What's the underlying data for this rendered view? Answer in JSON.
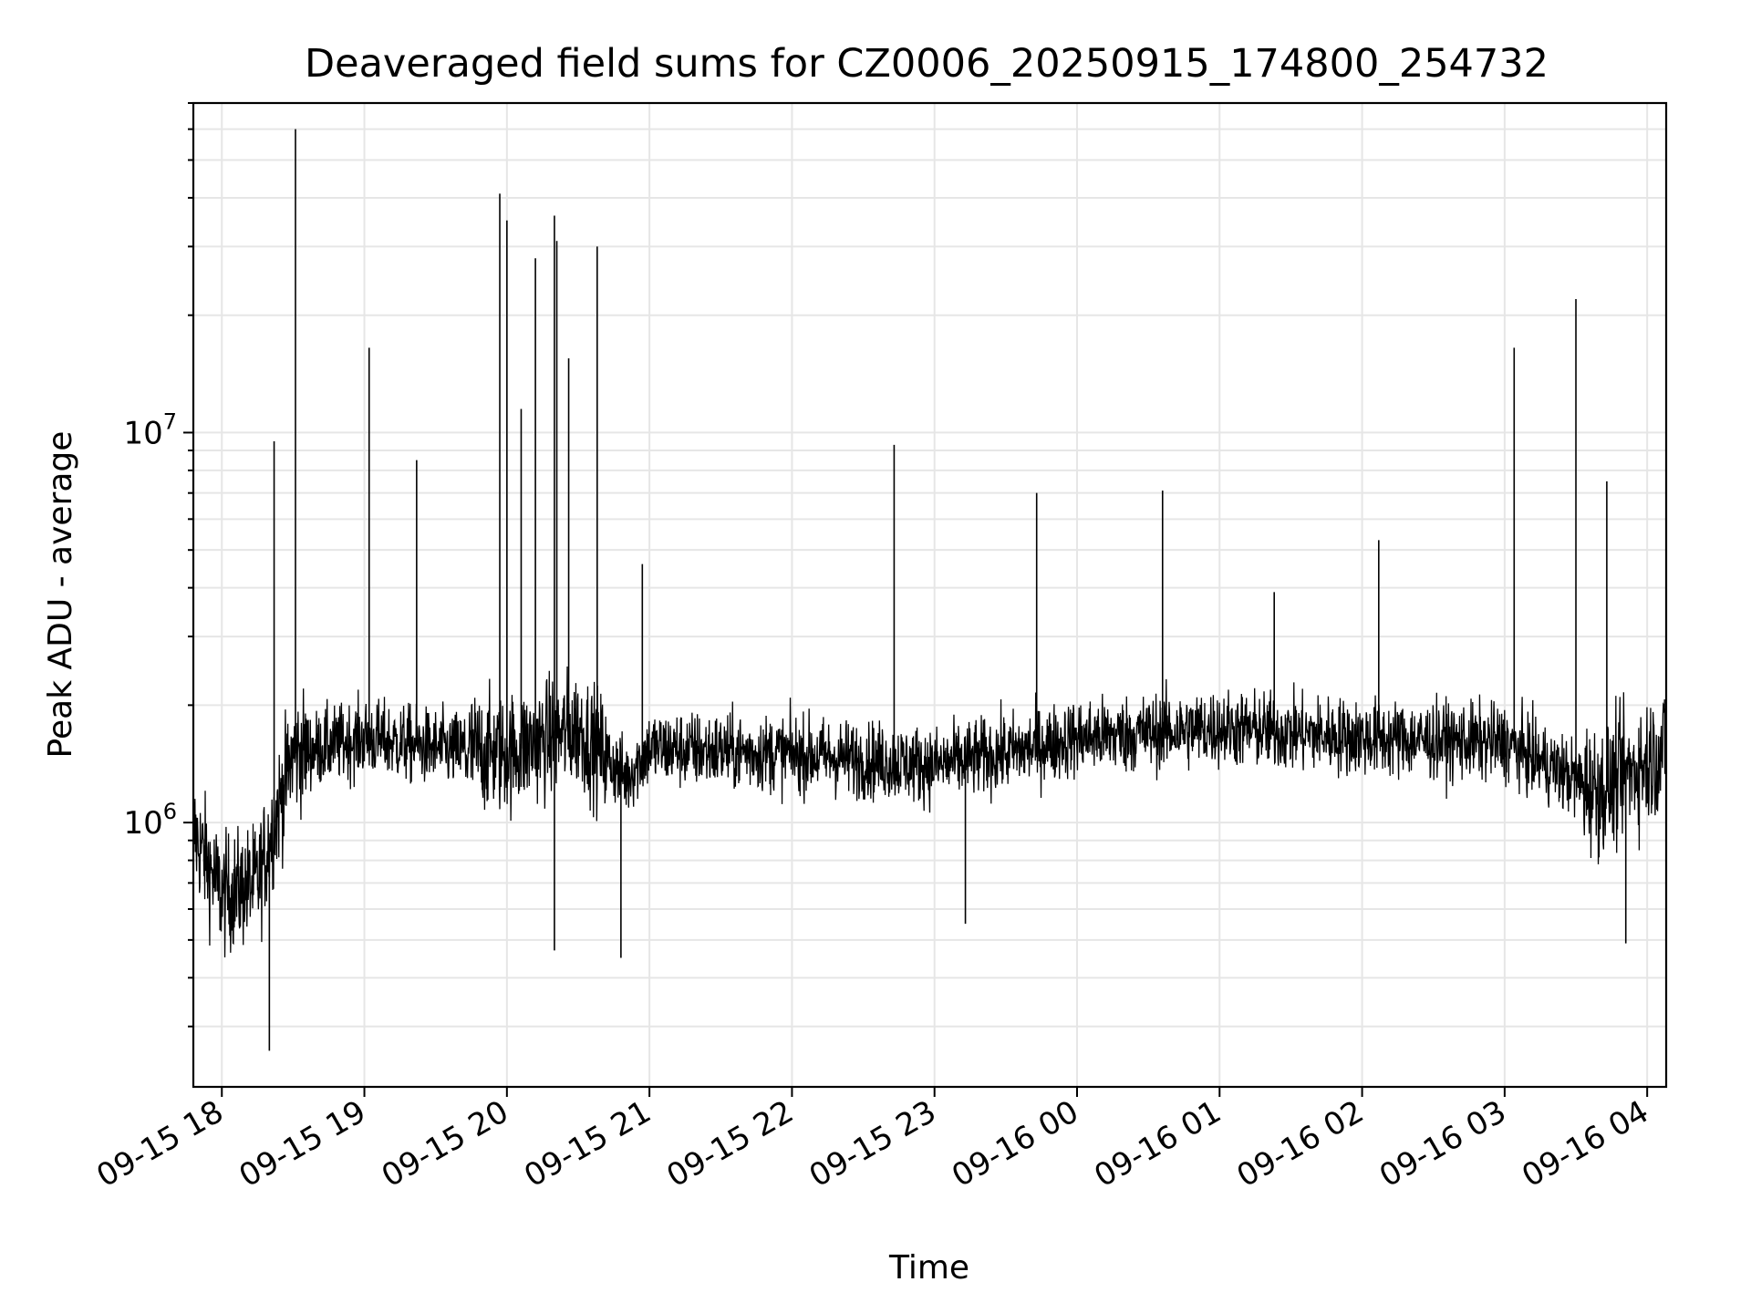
{
  "chart_data": {
    "type": "line",
    "title": "Deaveraged field sums for CZ0006_20250915_174800_254732",
    "xlabel": "Time",
    "ylabel": "Peak ADU - average",
    "yscale": "log",
    "ylim": [
      210000,
      70000000
    ],
    "xlim": [
      "2025-09-15 17:48",
      "2025-09-16 04:08"
    ],
    "grid": true,
    "x_ticks": [
      {
        "t": "2025-09-15 18:00",
        "label": "09-15 18"
      },
      {
        "t": "2025-09-15 19:00",
        "label": "09-15 19"
      },
      {
        "t": "2025-09-15 20:00",
        "label": "09-15 20"
      },
      {
        "t": "2025-09-15 21:00",
        "label": "09-15 21"
      },
      {
        "t": "2025-09-15 22:00",
        "label": "09-15 22"
      },
      {
        "t": "2025-09-15 23:00",
        "label": "09-15 23"
      },
      {
        "t": "2025-09-16 00:00",
        "label": "09-16 00"
      },
      {
        "t": "2025-09-16 01:00",
        "label": "09-16 01"
      },
      {
        "t": "2025-09-16 02:00",
        "label": "09-16 02"
      },
      {
        "t": "2025-09-16 03:00",
        "label": "09-16 03"
      },
      {
        "t": "2025-09-16 04:00",
        "label": "09-16 04"
      }
    ],
    "y_ticks": [
      {
        "value": 1000000,
        "mantissa": "10",
        "exponent": "6"
      },
      {
        "value": 10000000,
        "mantissa": "10",
        "exponent": "7"
      }
    ],
    "series": [
      {
        "color": "#000000",
        "baseline": [
          {
            "t": "2025-09-15 17:48",
            "y": 950000
          },
          {
            "t": "2025-09-15 18:00",
            "y": 650000
          },
          {
            "t": "2025-09-15 18:15",
            "y": 700000
          },
          {
            "t": "2025-09-15 18:30",
            "y": 1500000
          },
          {
            "t": "2025-09-15 19:00",
            "y": 1650000
          },
          {
            "t": "2025-09-15 19:30",
            "y": 1550000
          },
          {
            "t": "2025-09-15 20:00",
            "y": 1500000
          },
          {
            "t": "2025-09-15 20:30",
            "y": 1750000
          },
          {
            "t": "2025-09-15 20:50",
            "y": 1300000
          },
          {
            "t": "2025-09-15 21:00",
            "y": 1550000
          },
          {
            "t": "2025-09-15 22:00",
            "y": 1500000
          },
          {
            "t": "2025-09-15 23:00",
            "y": 1400000
          },
          {
            "t": "2025-09-15 23:40",
            "y": 1550000
          },
          {
            "t": "2025-09-16 00:00",
            "y": 1650000
          },
          {
            "t": "2025-09-16 01:00",
            "y": 1750000
          },
          {
            "t": "2025-09-16 02:00",
            "y": 1650000
          },
          {
            "t": "2025-09-16 03:00",
            "y": 1600000
          },
          {
            "t": "2025-09-16 03:40",
            "y": 1200000
          },
          {
            "t": "2025-09-16 04:08",
            "y": 1550000
          }
        ],
        "spikes": [
          {
            "t": "2025-09-15 18:22",
            "y": 9500000
          },
          {
            "t": "2025-09-15 18:31",
            "y": 60000000
          },
          {
            "t": "2025-09-15 19:02",
            "y": 16500000
          },
          {
            "t": "2025-09-15 19:22",
            "y": 8500000
          },
          {
            "t": "2025-09-15 19:57",
            "y": 41000000
          },
          {
            "t": "2025-09-15 20:00",
            "y": 35000000
          },
          {
            "t": "2025-09-15 20:06",
            "y": 11500000
          },
          {
            "t": "2025-09-15 20:12",
            "y": 28000000
          },
          {
            "t": "2025-09-15 20:20",
            "y": 36000000
          },
          {
            "t": "2025-09-15 20:21",
            "y": 31000000
          },
          {
            "t": "2025-09-15 20:26",
            "y": 15500000
          },
          {
            "t": "2025-09-15 20:38",
            "y": 30000000
          },
          {
            "t": "2025-09-15 20:57",
            "y": 4600000
          },
          {
            "t": "2025-09-15 22:43",
            "y": 9300000
          },
          {
            "t": "2025-09-15 23:43",
            "y": 7000000
          },
          {
            "t": "2025-09-16 00:36",
            "y": 7100000
          },
          {
            "t": "2025-09-16 01:23",
            "y": 3900000
          },
          {
            "t": "2025-09-16 02:07",
            "y": 5300000
          },
          {
            "t": "2025-09-16 03:04",
            "y": 16500000
          },
          {
            "t": "2025-09-16 03:30",
            "y": 22000000
          },
          {
            "t": "2025-09-16 03:43",
            "y": 7500000
          }
        ],
        "dips": [
          {
            "t": "2025-09-15 18:20",
            "y": 260000
          },
          {
            "t": "2025-09-15 20:20",
            "y": 470000
          },
          {
            "t": "2025-09-15 20:48",
            "y": 450000
          },
          {
            "t": "2025-09-15 23:13",
            "y": 550000
          },
          {
            "t": "2025-09-16 03:51",
            "y": 490000
          }
        ]
      }
    ]
  }
}
